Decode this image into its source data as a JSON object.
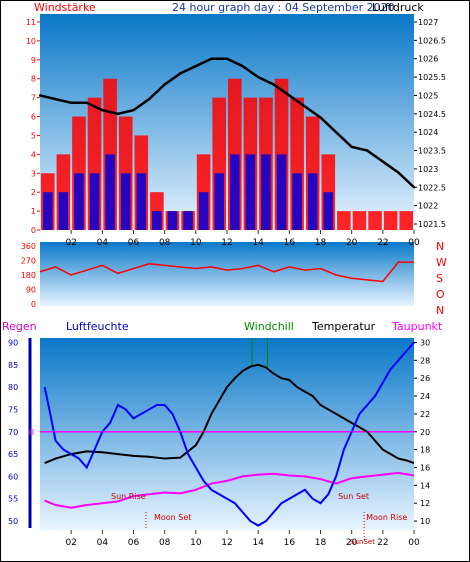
{
  "header": {
    "left_label": "Windstärke",
    "title": "24 hour graph day : 04 September 2020",
    "right_label": "Luftdruck"
  },
  "colors": {
    "wind_speed": "#ff0000",
    "wind_gust": "#0000dd",
    "pressure": "#000000",
    "wind_dir": "#ff0000",
    "humidity": "#0000ff",
    "temperature": "#000000",
    "dewpoint": "#ff00ff",
    "windchill": "#008800",
    "rain_axis": "#0000aa",
    "plot_top": "#0a78c8",
    "plot_bottom": "#e8f4ff"
  },
  "x_axis": {
    "ticks": [
      "02",
      "04",
      "06",
      "08",
      "10",
      "12",
      "14",
      "16",
      "18",
      "20",
      "22",
      "00"
    ]
  },
  "wind_panel": {
    "y_left_ticks": [
      "0",
      "1",
      "2",
      "3",
      "4",
      "5",
      "6",
      "7",
      "8",
      "9",
      "10",
      "11"
    ],
    "y_right_ticks": [
      "1021.5",
      "1022",
      "1022.5",
      "1023",
      "1023.5",
      "1024",
      "1024.5",
      "1025",
      "1025.5",
      "1026",
      "1026.5",
      "1027"
    ]
  },
  "direction_panel": {
    "y_ticks": [
      "0",
      "90",
      "180",
      "270",
      "360"
    ],
    "compass": [
      "N",
      "W",
      "S",
      "O",
      "N"
    ]
  },
  "lower_panel": {
    "labels": {
      "rain": "Regen",
      "humidity": "Luftfeuchte",
      "windchill": "Windchill",
      "temperature": "Temperatur",
      "dewpoint": "Taupunkt"
    },
    "y_left_ticks": [
      "50",
      "55",
      "60",
      "65",
      "70",
      "75",
      "80",
      "85",
      "90"
    ],
    "y_right_ticks": [
      "10",
      "12",
      "14",
      "16",
      "18",
      "20",
      "22",
      "24",
      "26",
      "28",
      "30"
    ],
    "rain_marker": "0",
    "annotations": {
      "sun_rise": "Sun Rise",
      "moon_set": "Moon Set",
      "sun_set": "Sun Set",
      "moon_rise": "Moon Rise",
      "sun_set_short": "SunSet"
    }
  },
  "chart_data": [
    {
      "type": "line",
      "name": "wind-and-pressure",
      "x_unit": "hours",
      "xlim": [
        0,
        24
      ],
      "ylim_left": [
        0,
        11
      ],
      "ylim_right": [
        1021.5,
        1027
      ],
      "series": [
        {
          "name": "Windstärke",
          "axis": "left",
          "style": "bars",
          "x": [
            0,
            1,
            2,
            3,
            4,
            5,
            6,
            7,
            8,
            9,
            10,
            11,
            12,
            13,
            14,
            15,
            16,
            17,
            18,
            19,
            20,
            21,
            22,
            23
          ],
          "values": [
            3,
            4,
            6,
            7,
            8,
            6,
            5,
            2,
            1,
            1,
            4,
            7,
            8,
            7,
            7,
            8,
            7,
            6,
            4,
            1,
            1,
            1,
            1,
            1
          ]
        },
        {
          "name": "Böen",
          "axis": "left",
          "style": "bars",
          "x": [
            0,
            1,
            2,
            3,
            4,
            5,
            6,
            7,
            8,
            9,
            10,
            11,
            12,
            13,
            14,
            15,
            16,
            17,
            18,
            19,
            20,
            21,
            22,
            23
          ],
          "values": [
            2,
            2,
            3,
            3,
            4,
            3,
            3,
            1,
            1,
            1,
            2,
            3,
            4,
            4,
            4,
            4,
            3,
            3,
            2,
            0,
            0,
            0,
            0,
            0
          ]
        },
        {
          "name": "Luftdruck",
          "axis": "right",
          "x": [
            0,
            1,
            2,
            3,
            4,
            5,
            6,
            7,
            8,
            9,
            10,
            11,
            12,
            13,
            14,
            15,
            16,
            17,
            18,
            19,
            20,
            21,
            22,
            23,
            24
          ],
          "values": [
            1025.0,
            1024.9,
            1024.8,
            1024.8,
            1024.6,
            1024.5,
            1024.6,
            1024.9,
            1025.3,
            1025.6,
            1025.8,
            1026.0,
            1026.0,
            1025.8,
            1025.5,
            1025.3,
            1025.0,
            1024.7,
            1024.4,
            1024.0,
            1023.6,
            1023.5,
            1023.2,
            1022.9,
            1022.5
          ]
        }
      ]
    },
    {
      "type": "line",
      "name": "wind-direction",
      "x_unit": "hours",
      "xlim": [
        0,
        24
      ],
      "ylim": [
        0,
        360
      ],
      "series": [
        {
          "name": "Windrichtung",
          "x": [
            0,
            1,
            2,
            3,
            4,
            5,
            6,
            7,
            8,
            9,
            10,
            11,
            12,
            13,
            14,
            15,
            16,
            17,
            18,
            19,
            20,
            21,
            22,
            23,
            24
          ],
          "values": [
            200,
            230,
            180,
            210,
            240,
            190,
            220,
            250,
            240,
            230,
            220,
            230,
            210,
            220,
            240,
            200,
            230,
            210,
            220,
            180,
            160,
            150,
            140,
            260,
            260
          ]
        }
      ]
    },
    {
      "type": "line",
      "name": "humidity-temperature",
      "x_unit": "hours",
      "xlim": [
        0,
        24
      ],
      "ylim_left": [
        48,
        91
      ],
      "ylim_right": [
        9,
        30.5
      ],
      "series": [
        {
          "name": "Luftfeuchte",
          "axis": "left",
          "x": [
            0.3,
            0.6,
            1,
            1.5,
            2,
            2.5,
            3,
            3.5,
            4,
            4.5,
            5,
            5.5,
            6,
            6.5,
            7,
            7.5,
            8,
            8.5,
            9,
            9.5,
            10,
            10.5,
            11,
            11.5,
            12,
            12.5,
            13,
            13.5,
            14,
            14.5,
            15,
            15.5,
            16,
            16.5,
            17,
            17.5,
            18,
            18.5,
            19,
            19.5,
            20,
            20.5,
            21,
            21.5,
            22,
            22.5,
            23,
            23.5,
            24
          ],
          "values": [
            80,
            75,
            68,
            66,
            65,
            64,
            62,
            66,
            70,
            72,
            76,
            75,
            73,
            74,
            75,
            76,
            76,
            74,
            70,
            65,
            62,
            59,
            57,
            56,
            55,
            54,
            52,
            50,
            49,
            50,
            52,
            54,
            55,
            56,
            57,
            55,
            54,
            56,
            60,
            66,
            70,
            74,
            76,
            78,
            81,
            84,
            86,
            88,
            90
          ]
        },
        {
          "name": "Temperatur",
          "axis": "right",
          "x": [
            0.3,
            1,
            2,
            3,
            4,
            5,
            6,
            7,
            8,
            9,
            10,
            10.5,
            11,
            11.5,
            12,
            12.5,
            13,
            13.5,
            14,
            14.5,
            15,
            15.5,
            16,
            16.5,
            17,
            17.5,
            18,
            18.5,
            19,
            19.5,
            20,
            20.5,
            21,
            21.5,
            22,
            22.5,
            23,
            23.5,
            24
          ],
          "values": [
            16.5,
            17.0,
            17.5,
            17.8,
            17.7,
            17.5,
            17.3,
            17.2,
            17.0,
            17.1,
            18.5,
            20.0,
            22.0,
            23.5,
            25.0,
            26.0,
            26.8,
            27.3,
            27.5,
            27.2,
            26.5,
            26.0,
            25.8,
            25.0,
            24.5,
            24.0,
            23.0,
            22.5,
            22.0,
            21.5,
            21.0,
            20.5,
            20.0,
            19.0,
            18.0,
            17.5,
            17.0,
            16.8,
            16.5
          ]
        },
        {
          "name": "Taupunkt",
          "axis": "right",
          "x": [
            0.3,
            1,
            2,
            3,
            4,
            5,
            6,
            7,
            8,
            9,
            10,
            11,
            12,
            13,
            14,
            15,
            16,
            17,
            18,
            19,
            20,
            21,
            22,
            23,
            24
          ],
          "values": [
            12.3,
            11.8,
            11.5,
            11.8,
            12.0,
            12.2,
            12.8,
            13.0,
            13.2,
            13.1,
            13.5,
            14.2,
            14.5,
            15.0,
            15.2,
            15.3,
            15.1,
            15.0,
            14.7,
            14.2,
            14.8,
            15.0,
            15.2,
            15.4,
            15.1
          ]
        }
      ],
      "markers": [
        {
          "label": "Sun Rise",
          "x": 5.2
        },
        {
          "label": "Moon Set",
          "x": 6.8
        },
        {
          "label": "Sun Set",
          "x": 19.0
        },
        {
          "label": "Moon Rise",
          "x": 20.8
        }
      ]
    }
  ]
}
